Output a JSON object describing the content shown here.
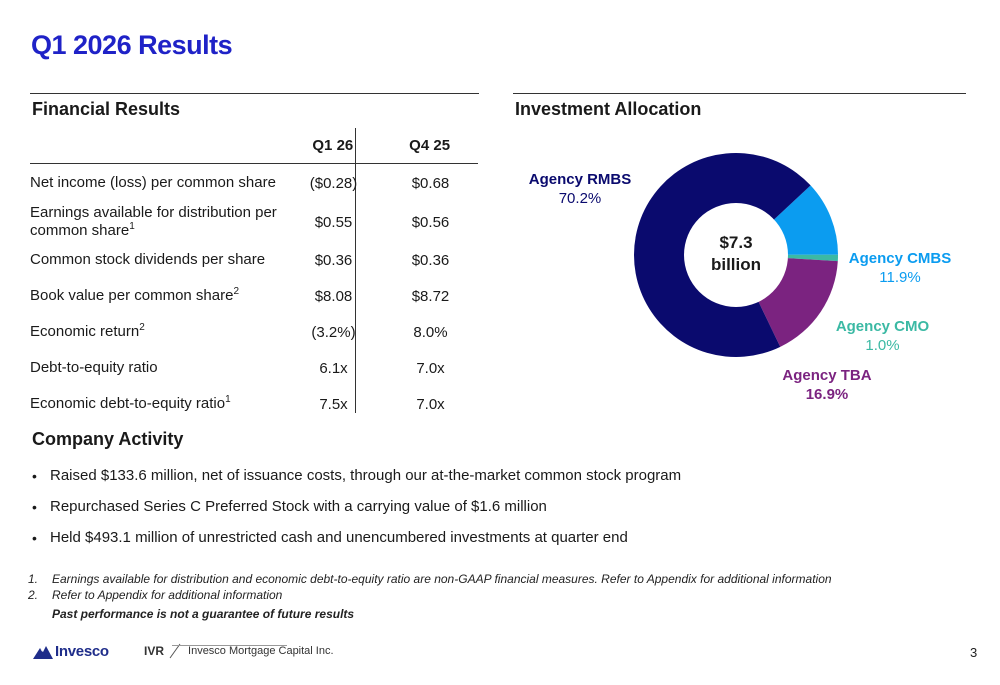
{
  "page_title": "Q1 2026 Results",
  "financial": {
    "heading": "Financial Results",
    "columns": [
      "Q1 26",
      "Q4 25"
    ],
    "rows": [
      {
        "label": "Net income (loss) per common share",
        "sup": "",
        "q1": "($0.28)",
        "q4": "$0.68"
      },
      {
        "label": "Earnings available for distribution per common share",
        "sup": "1",
        "q1": "$0.55",
        "q4": "$0.56"
      },
      {
        "label": "Common stock dividends per share",
        "sup": "",
        "q1": "$0.36",
        "q4": "$0.36"
      },
      {
        "label": "Book value per common share",
        "sup": "2",
        "q1": "$8.08",
        "q4": "$8.72"
      },
      {
        "label": "Economic return",
        "sup": "2",
        "q1": "(3.2%)",
        "q4": "8.0%"
      },
      {
        "label": "Debt-to-equity ratio",
        "sup": "",
        "q1": "6.1x",
        "q4": "7.0x"
      },
      {
        "label": "Economic debt-to-equity ratio",
        "sup": "1",
        "q1": "7.5x",
        "q4": "7.0x"
      }
    ]
  },
  "activity": {
    "heading": "Company Activity",
    "bullet_char": "•",
    "items": [
      "Raised $133.6 million, net of issuance costs, through our at-the-market common stock program",
      "Repurchased Series C Preferred Stock with a carrying value of $1.6 million",
      "Held $493.1 million of unrestricted cash and unencumbered investments at quarter end"
    ]
  },
  "allocation": {
    "heading": "Investment Allocation",
    "center_amount": "$7.3",
    "center_unit": "billion"
  },
  "chart_data": {
    "type": "pie",
    "donut": true,
    "total_label": "$7.3 billion",
    "slices": [
      {
        "name": "Agency RMBS",
        "value": 70.2,
        "label": "70.2%",
        "color": "#0a0a6e"
      },
      {
        "name": "Agency CMBS",
        "value": 11.9,
        "label": "11.9%",
        "color": "#0b9cf0"
      },
      {
        "name": "Agency CMO",
        "value": 1.0,
        "label": "1.0%",
        "color": "#3bb9a4"
      },
      {
        "name": "Agency TBA",
        "value": 16.9,
        "label": "16.9%",
        "color": "#7b2380"
      }
    ]
  },
  "footnotes": [
    {
      "num": "1.",
      "text": "Earnings available for distribution and economic debt-to-equity ratio are non-GAAP financial measures. Refer to Appendix for additional information"
    },
    {
      "num": "2.",
      "text": "Refer to Appendix for additional information"
    }
  ],
  "disclaimer": "Past performance is not a guarantee of future results",
  "footer": {
    "logo_text": "Invesco",
    "ivr_code": "IVR",
    "ivr_name": "Invesco Mortgage Capital Inc.",
    "page_number": "3"
  },
  "colors": {
    "title": "#1f22c7",
    "rmbs": "#0a0a6e",
    "cmbs": "#0b9cf0",
    "cmo": "#3bb9a4",
    "tba": "#7b2380"
  }
}
